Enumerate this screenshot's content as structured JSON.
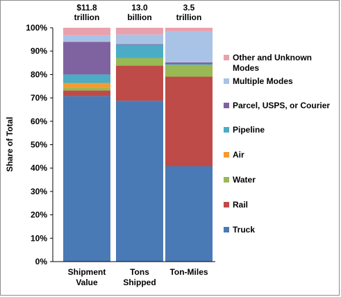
{
  "chart_data": {
    "type": "bar",
    "stacked": true,
    "categories": [
      "Shipment\nValue",
      "Tons\nShipped",
      "Ton-Miles"
    ],
    "top_labels": [
      "$11.8\ntrillion",
      "13.0\nbillion",
      "3.5\ntrillion"
    ],
    "ylabel": "Share of Total",
    "ylim": [
      0,
      100
    ],
    "yticks": [
      "0%",
      "10%",
      "20%",
      "30%",
      "40%",
      "50%",
      "60%",
      "70%",
      "80%",
      "90%",
      "100%"
    ],
    "grid": false,
    "legend_position": "right",
    "series": [
      {
        "name": "Truck",
        "color": "#4a7ab5",
        "values": [
          70.8,
          68.8,
          40.8
        ]
      },
      {
        "name": "Rail",
        "color": "#be4b48",
        "values": [
          2.4,
          15.0,
          38.3
        ]
      },
      {
        "name": "Water",
        "color": "#98b954",
        "values": [
          1.2,
          3.3,
          5.0
        ]
      },
      {
        "name": "Air",
        "color": "#f59b2f",
        "values": [
          2.0,
          0.0,
          0.0
        ]
      },
      {
        "name": "Pipeline",
        "color": "#4bacc6",
        "values": [
          3.6,
          5.6,
          0.3
        ]
      },
      {
        "name": "Parcel, USPS, or Courier",
        "color": "#7f63a1",
        "values": [
          14.0,
          0.3,
          0.8
        ]
      },
      {
        "name": "Multiple Modes",
        "color": "#a9c3e6",
        "values": [
          2.8,
          4.1,
          13.2
        ]
      },
      {
        "name": "Other and Unknown Modes",
        "color": "#e9a1ad",
        "values": [
          3.2,
          2.9,
          1.6
        ]
      }
    ]
  }
}
